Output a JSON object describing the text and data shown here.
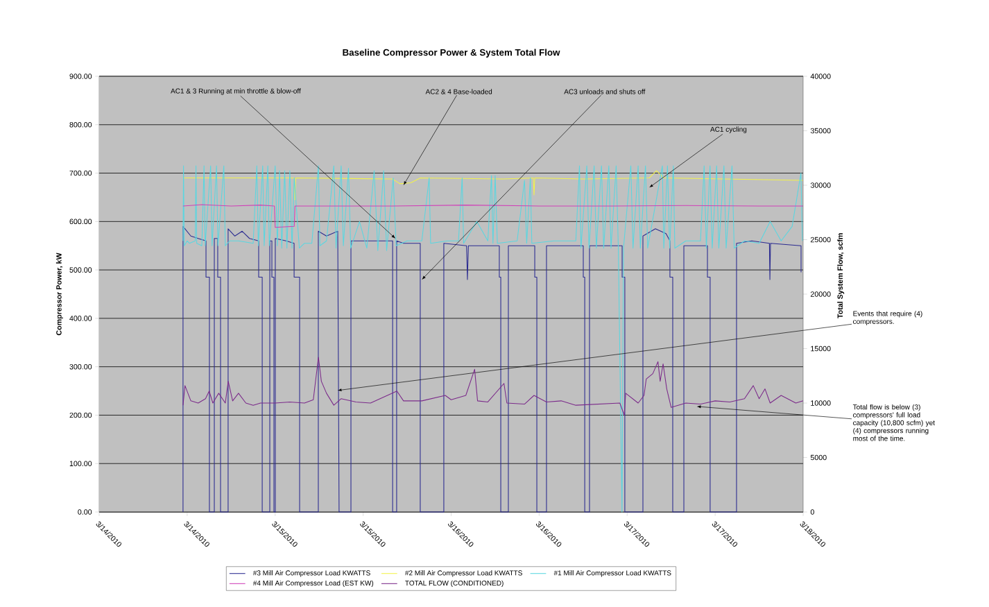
{
  "chart_data": {
    "type": "line",
    "title": "Baseline Compressor Power & System Total Flow",
    "ylabel": "Compressor Power, kW",
    "y2label": "Total System Flow, scfm",
    "xlim": [
      "2010-03-14T00:00",
      "2010-03-18T00:00"
    ],
    "xticks": [
      {
        "value": "2010-03-14T00:00",
        "label": "3/14/2010"
      },
      {
        "value": "2010-03-14T12:00",
        "label": "3/14/2010"
      },
      {
        "value": "2010-03-15T00:00",
        "label": "3/15/2010"
      },
      {
        "value": "2010-03-15T12:00",
        "label": "3/15/2010"
      },
      {
        "value": "2010-03-16T00:00",
        "label": "3/16/2010"
      },
      {
        "value": "2010-03-16T12:00",
        "label": "3/16/2010"
      },
      {
        "value": "2010-03-17T00:00",
        "label": "3/17/2010"
      },
      {
        "value": "2010-03-17T12:00",
        "label": "3/17/2010"
      },
      {
        "value": "2010-03-18T00:00",
        "label": "3/18/2010"
      }
    ],
    "ylim": [
      0,
      900
    ],
    "yticks": [
      {
        "value": 0,
        "label": "0.00"
      },
      {
        "value": 100,
        "label": "100.00"
      },
      {
        "value": 200,
        "label": "200.00"
      },
      {
        "value": 300,
        "label": "300.00"
      },
      {
        "value": 400,
        "label": "400.00"
      },
      {
        "value": 500,
        "label": "500.00"
      },
      {
        "value": 600,
        "label": "600.00"
      },
      {
        "value": 700,
        "label": "700.00"
      },
      {
        "value": 800,
        "label": "800.00"
      },
      {
        "value": 900,
        "label": "900.00"
      }
    ],
    "y2lim": [
      0,
      40000
    ],
    "y2ticks": [
      0,
      5000,
      10000,
      15000,
      20000,
      25000,
      30000,
      35000,
      40000
    ],
    "grid": "y",
    "legend": "bottom",
    "series": [
      {
        "name": "#3 Mill Air Compressor Load KWATTS",
        "color": "#2a2a90",
        "x": [
          "2010-03-14T11:26",
          "2010-03-14T11:26",
          "2010-03-14T12:30",
          "2010-03-14T13:30",
          "2010-03-14T14:34",
          "2010-03-14T14:34",
          "2010-03-14T15:02",
          "2010-03-14T15:02",
          "2010-03-14T15:42",
          "2010-03-14T15:42",
          "2010-03-14T16:10",
          "2010-03-14T16:10",
          "2010-03-14T16:33",
          "2010-03-14T16:33",
          "2010-03-14T17:35",
          "2010-03-14T17:35",
          "2010-03-14T18:30",
          "2010-03-14T19:30",
          "2010-03-14T20:30",
          "2010-03-14T21:45",
          "2010-03-14T21:45",
          "2010-03-14T22:14",
          "2010-03-14T22:14",
          "2010-03-14T23:16",
          "2010-03-14T23:16",
          "2010-03-14T23:33",
          "2010-03-14T23:33",
          "2010-03-14T23:50",
          "2010-03-14T23:50",
          "2010-03-15T00:01",
          "2010-03-15T00:01",
          "2010-03-15T01:30",
          "2010-03-15T02:35",
          "2010-03-15T02:35",
          "2010-03-15T03:20",
          "2010-03-15T03:20",
          "2010-03-15T05:53",
          "2010-03-15T05:53",
          "2010-03-15T07:00",
          "2010-03-15T08:32",
          "2010-03-15T08:43",
          "2010-03-15T10:20",
          "2010-03-15T10:20",
          "2010-03-15T16:01",
          "2010-03-15T16:01",
          "2010-03-15T16:34",
          "2010-03-15T16:34",
          "2010-03-15T17:30",
          "2010-03-15T19:47",
          "2010-03-15T19:47",
          "2010-03-15T23:00",
          "2010-03-15T23:00",
          "2010-03-16T02:06",
          "2010-03-16T02:13",
          "2010-03-16T02:21",
          "2010-03-16T06:34",
          "2010-03-16T06:34",
          "2010-03-16T06:46",
          "2010-03-16T06:46",
          "2010-03-16T07:48",
          "2010-03-16T07:48",
          "2010-03-16T11:24",
          "2010-03-16T11:24",
          "2010-03-16T11:41",
          "2010-03-16T11:41",
          "2010-03-16T13:00",
          "2010-03-16T13:00",
          "2010-03-16T18:01",
          "2010-03-16T18:01",
          "2010-03-16T18:13",
          "2010-03-16T18:13",
          "2010-03-16T18:52",
          "2010-03-16T18:52",
          "2010-03-16T23:19",
          "2010-03-16T23:19",
          "2010-03-16T23:41",
          "2010-03-16T23:41",
          "2010-03-17T02:09",
          "2010-03-17T02:09",
          "2010-03-17T03:51",
          "2010-03-17T05:18",
          "2010-03-17T05:50",
          "2010-03-17T05:50",
          "2010-03-17T06:13",
          "2010-03-17T06:13",
          "2010-03-17T07:44",
          "2010-03-17T07:44",
          "2010-03-17T10:57",
          "2010-03-17T10:57",
          "2010-03-17T11:19",
          "2010-03-17T11:19",
          "2010-03-17T14:55",
          "2010-03-17T14:55",
          "2010-03-17T17:00",
          "2010-03-17T19:24",
          "2010-03-17T19:28",
          "2010-03-17T19:33",
          "2010-03-17T23:43",
          "2010-03-17T23:43"
        ],
        "values": [
          0,
          590,
          570,
          565,
          560,
          485,
          485,
          0,
          0,
          565,
          565,
          485,
          485,
          0,
          0,
          585,
          570,
          580,
          565,
          560,
          485,
          485,
          0,
          0,
          560,
          560,
          485,
          485,
          0,
          0,
          565,
          560,
          555,
          485,
          485,
          0,
          0,
          580,
          570,
          580,
          0,
          0,
          560,
          560,
          0,
          0,
          560,
          555,
          555,
          0,
          0,
          555,
          550,
          480,
          550,
          550,
          485,
          485,
          0,
          0,
          550,
          550,
          485,
          485,
          0,
          0,
          550,
          550,
          485,
          485,
          0,
          0,
          550,
          550,
          485,
          485,
          0,
          0,
          570,
          585,
          575,
          560,
          485,
          485,
          0,
          0,
          550,
          550,
          485,
          485,
          0,
          0,
          555,
          560,
          555,
          480,
          555,
          550,
          495
        ]
      },
      {
        "name": "#2 Mill Air Compressor Load KWATTS",
        "color": "#f2f24a",
        "x": [
          "2010-03-14T11:26",
          "2010-03-14T14:36",
          "2010-03-14T15:12",
          "2010-03-14T15:24",
          "2010-03-15T02:00",
          "2010-03-15T02:36",
          "2010-03-15T02:42",
          "2010-03-15T02:48",
          "2010-03-15T16:00",
          "2010-03-15T17:00",
          "2010-03-15T18:30",
          "2010-03-15T19:48",
          "2010-03-16T07:00",
          "2010-03-16T11:12",
          "2010-03-16T11:18",
          "2010-03-16T11:24",
          "2010-03-16T18:00",
          "2010-03-17T03:00",
          "2010-03-17T04:00",
          "2010-03-17T05:00",
          "2010-03-18T00:00"
        ],
        "values": [
          690,
          690,
          690,
          690,
          690,
          690,
          645,
          690,
          688,
          678,
          680,
          690,
          688,
          690,
          655,
          690,
          688,
          690,
          705,
          690,
          685
        ]
      },
      {
        "name": "#1 Mill Air Compressor Load KWATTS",
        "color": "#5ad6e0",
        "x": [
          "2010-03-14T11:26",
          "2010-03-14T11:30",
          "2010-03-14T11:36",
          "2010-03-14T12:00",
          "2010-03-14T12:18",
          "2010-03-14T13:06",
          "2010-03-14T13:12",
          "2010-03-14T13:18",
          "2010-03-14T14:00",
          "2010-03-14T14:18",
          "2010-03-14T14:27",
          "2010-03-14T15:12",
          "2010-03-14T15:24",
          "2010-03-14T16:00",
          "2010-03-14T16:12",
          "2010-03-14T17:00",
          "2010-03-14T17:12",
          "2010-03-14T17:48",
          "2010-03-14T19:00",
          "2010-03-14T21:00",
          "2010-03-14T21:30",
          "2010-03-14T21:42",
          "2010-03-14T22:18",
          "2010-03-14T22:30",
          "2010-03-14T23:00",
          "2010-03-14T23:12",
          "2010-03-15T00:00",
          "2010-03-15T00:18",
          "2010-03-15T00:36",
          "2010-03-15T00:54",
          "2010-03-15T01:18",
          "2010-03-15T01:36",
          "2010-03-15T02:00",
          "2010-03-15T02:18",
          "2010-03-15T02:36",
          "2010-03-15T03:18",
          "2010-03-15T04:00",
          "2010-03-15T05:00",
          "2010-03-15T05:54",
          "2010-03-15T06:06",
          "2010-03-15T07:00",
          "2010-03-15T08:00",
          "2010-03-15T08:18",
          "2010-03-15T09:00",
          "2010-03-15T09:18",
          "2010-03-15T10:00",
          "2010-03-15T10:18",
          "2010-03-15T11:30",
          "2010-03-15T12:30",
          "2010-03-15T13:30",
          "2010-03-15T14:00",
          "2010-03-15T14:48",
          "2010-03-15T15:12",
          "2010-03-15T16:06",
          "2010-03-15T16:30",
          "2010-03-15T18:00",
          "2010-03-15T20:00",
          "2010-03-15T21:00",
          "2010-03-15T21:12",
          "2010-03-15T23:30",
          "2010-03-16T01:00",
          "2010-03-16T01:30",
          "2010-03-16T01:42",
          "2010-03-16T03:30",
          "2010-03-16T05:00",
          "2010-03-16T05:30",
          "2010-03-16T05:42",
          "2010-03-16T06:00",
          "2010-03-16T06:18",
          "2010-03-16T09:00",
          "2010-03-16T10:00",
          "2010-03-16T10:18",
          "2010-03-16T10:48",
          "2010-03-16T11:00",
          "2010-03-16T14:00",
          "2010-03-16T17:00",
          "2010-03-16T17:30",
          "2010-03-16T17:42",
          "2010-03-16T18:30",
          "2010-03-16T18:48",
          "2010-03-16T19:30",
          "2010-03-16T19:48",
          "2010-03-16T20:30",
          "2010-03-16T20:48",
          "2010-03-16T21:30",
          "2010-03-16T21:48",
          "2010-03-16T22:30",
          "2010-03-16T22:48",
          "2010-03-16T23:18",
          "2010-03-16T23:30",
          "2010-03-17T00:30",
          "2010-03-17T00:48",
          "2010-03-17T01:30",
          "2010-03-17T01:48",
          "2010-03-17T02:30",
          "2010-03-17T02:48",
          "2010-03-17T04:48",
          "2010-03-17T05:00",
          "2010-03-17T05:30",
          "2010-03-17T05:48",
          "2010-03-17T06:18",
          "2010-03-17T06:30",
          "2010-03-17T08:00",
          "2010-03-17T10:00",
          "2010-03-17T10:30",
          "2010-03-17T10:48",
          "2010-03-17T11:18",
          "2010-03-17T11:36",
          "2010-03-17T12:12",
          "2010-03-17T12:30",
          "2010-03-17T13:12",
          "2010-03-17T13:30",
          "2010-03-17T14:18",
          "2010-03-17T14:36",
          "2010-03-17T16:00",
          "2010-03-17T18:00",
          "2010-03-17T19:30",
          "2010-03-17T21:00",
          "2010-03-17T22:30",
          "2010-03-17T23:42",
          "2010-03-17T23:54"
        ],
        "values": [
          560,
          715,
          550,
          560,
          555,
          560,
          715,
          555,
          550,
          715,
          550,
          715,
          550,
          715,
          550,
          715,
          550,
          560,
          560,
          555,
          715,
          550,
          715,
          550,
          715,
          550,
          715,
          550,
          705,
          545,
          705,
          545,
          705,
          545,
          690,
          545,
          555,
          555,
          715,
          550,
          560,
          715,
          545,
          715,
          550,
          710,
          545,
          600,
          545,
          705,
          540,
          705,
          540,
          690,
          550,
          560,
          560,
          690,
          555,
          560,
          560,
          690,
          555,
          600,
          560,
          695,
          555,
          695,
          555,
          560,
          685,
          555,
          690,
          555,
          560,
          560,
          715,
          545,
          715,
          545,
          715,
          545,
          715,
          545,
          715,
          545,
          715,
          545,
          0,
          545,
          715,
          545,
          715,
          545,
          715,
          545,
          715,
          545,
          715,
          545,
          715,
          545,
          560,
          560,
          715,
          545,
          715,
          545,
          715,
          545,
          715,
          545,
          715,
          545,
          560,
          555,
          600,
          560,
          590,
          700,
          560
        ]
      },
      {
        "name": "#4 Mill Air Compressor Load (EST KW)",
        "color": "#d040b8",
        "x": [
          "2010-03-14T11:26",
          "2010-03-14T14:00",
          "2010-03-14T18:00",
          "2010-03-14T22:00",
          "2010-03-14T23:54",
          "2010-03-15T00:00",
          "2010-03-15T02:36",
          "2010-03-15T02:42",
          "2010-03-15T06:00",
          "2010-03-15T16:00",
          "2010-03-16T02:00",
          "2010-03-16T12:00",
          "2010-03-16T22:00",
          "2010-03-17T08:00",
          "2010-03-17T18:00",
          "2010-03-18T00:00"
        ],
        "values": [
          632,
          635,
          632,
          634,
          632,
          588,
          590,
          632,
          632,
          632,
          634,
          632,
          632,
          633,
          632,
          632
        ]
      },
      {
        "name": "TOTAL FLOW (CONDITIONED)",
        "color": "#7b2a8a",
        "axis": "y2",
        "x": [
          "2010-03-14T11:26",
          "2010-03-14T11:42",
          "2010-03-14T12:30",
          "2010-03-14T13:30",
          "2010-03-14T14:30",
          "2010-03-14T15:00",
          "2010-03-14T15:30",
          "2010-03-14T16:18",
          "2010-03-14T17:12",
          "2010-03-14T17:36",
          "2010-03-14T18:12",
          "2010-03-14T19:00",
          "2010-03-14T20:00",
          "2010-03-14T21:00",
          "2010-03-14T22:00",
          "2010-03-15T00:00",
          "2010-03-15T02:00",
          "2010-03-15T04:00",
          "2010-03-15T05:12",
          "2010-03-15T05:54",
          "2010-03-15T06:18",
          "2010-03-15T07:00",
          "2010-03-15T08:00",
          "2010-03-15T09:00",
          "2010-03-15T11:00",
          "2010-03-15T13:00",
          "2010-03-15T16:36",
          "2010-03-15T17:30",
          "2010-03-15T20:00",
          "2010-03-15T23:12",
          "2010-03-16T00:00",
          "2010-03-16T02:00",
          "2010-03-16T03:12",
          "2010-03-16T03:36",
          "2010-03-16T05:00",
          "2010-03-16T07:12",
          "2010-03-16T07:36",
          "2010-03-16T10:00",
          "2010-03-16T11:18",
          "2010-03-16T13:00",
          "2010-03-16T15:00",
          "2010-03-16T17:00",
          "2010-03-16T20:00",
          "2010-03-16T23:00",
          "2010-03-16T23:36",
          "2010-03-16T23:48",
          "2010-03-17T01:30",
          "2010-03-17T02:18",
          "2010-03-17T02:36",
          "2010-03-17T03:30",
          "2010-03-17T04:12",
          "2010-03-17T04:30",
          "2010-03-17T04:54",
          "2010-03-17T05:24",
          "2010-03-17T06:00",
          "2010-03-17T08:00",
          "2010-03-17T10:00",
          "2010-03-17T12:00",
          "2010-03-17T14:00",
          "2010-03-17T16:00",
          "2010-03-17T17:12",
          "2010-03-17T18:00",
          "2010-03-17T18:48",
          "2010-03-17T19:30",
          "2010-03-17T21:00",
          "2010-03-17T23:00",
          "2010-03-18T00:00"
        ],
        "values": [
          9800,
          11600,
          10200,
          10000,
          10400,
          11100,
          10000,
          10900,
          10000,
          12000,
          10200,
          10900,
          10000,
          9800,
          10000,
          10000,
          10100,
          10000,
          10300,
          14200,
          12000,
          10900,
          9800,
          10400,
          10100,
          10000,
          11100,
          10200,
          10200,
          10700,
          10300,
          10700,
          13100,
          10200,
          10100,
          11800,
          10000,
          9900,
          10700,
          10100,
          10200,
          9800,
          9900,
          10000,
          8900,
          10900,
          10000,
          10700,
          12200,
          12700,
          13800,
          12000,
          13600,
          11300,
          9600,
          10000,
          9900,
          10200,
          10100,
          10400,
          11600,
          10400,
          11300,
          10000,
          10700,
          10000,
          10200
        ]
      }
    ],
    "annotations": [
      {
        "text": "AC1 & 3 Running at min throttle & blow-off",
        "x": "2010-03-15T16:24",
        "y": 565
      },
      {
        "text": "AC2 & 4 Base-loaded",
        "x": "2010-03-15T17:30",
        "y": 675
      },
      {
        "text": "AC3 unloads and shuts off",
        "x": "2010-03-15T20:00",
        "y": 480
      },
      {
        "text": "AC1 cycling",
        "x": "2010-03-17T03:00",
        "y": 670
      },
      {
        "text": "Events that require (4) compressors.",
        "x": "2010-03-15T08:30",
        "y": 251
      },
      {
        "text": "Total flow is below (3) compressors' full load capacity (10,800 scfm) yet (4) compressors running most of the time.",
        "x": "2010-03-17T09:30",
        "y": 218
      }
    ]
  }
}
